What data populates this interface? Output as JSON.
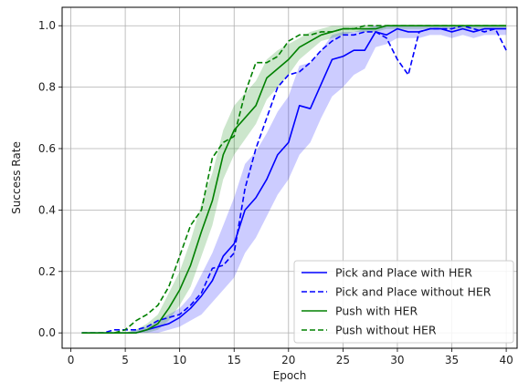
{
  "chart_data": {
    "type": "line",
    "title": "",
    "xlabel": "Epoch",
    "ylabel": "Success Rate",
    "xlim": [
      -0.8,
      41.0
    ],
    "ylim": [
      -0.05,
      1.06
    ],
    "xticks": [
      0,
      5,
      10,
      15,
      20,
      25,
      30,
      35,
      40
    ],
    "yticks": [
      0.0,
      0.2,
      0.4,
      0.6,
      0.8,
      1.0
    ],
    "xtick_labels": [
      "0",
      "5",
      "10",
      "15",
      "20",
      "25",
      "30",
      "35",
      "40"
    ],
    "ytick_labels": [
      "0.0",
      "0.2",
      "0.4",
      "0.6",
      "0.8",
      "1.0"
    ],
    "grid": true,
    "legend_position": "bottom-right",
    "x": [
      1,
      2,
      3,
      4,
      5,
      6,
      7,
      8,
      9,
      10,
      11,
      12,
      13,
      14,
      15,
      16,
      17,
      18,
      19,
      20,
      21,
      22,
      23,
      24,
      25,
      26,
      27,
      28,
      29,
      30,
      31,
      32,
      33,
      34,
      35,
      36,
      37,
      38,
      39,
      40
    ],
    "series": [
      {
        "name": "Pick and Place with HER",
        "color": "#0000ff",
        "linestyle": "solid",
        "values": [
          0.0,
          0.0,
          0.0,
          0.0,
          0.0,
          0.0,
          0.01,
          0.02,
          0.03,
          0.05,
          0.08,
          0.12,
          0.17,
          0.25,
          0.29,
          0.4,
          0.44,
          0.5,
          0.58,
          0.62,
          0.74,
          0.73,
          0.81,
          0.89,
          0.9,
          0.92,
          0.92,
          0.98,
          0.97,
          0.99,
          0.98,
          0.98,
          0.99,
          0.99,
          0.98,
          0.99,
          0.98,
          0.99,
          0.99,
          0.99
        ],
        "band_low": [
          0.0,
          0.0,
          0.0,
          0.0,
          0.0,
          0.0,
          0.0,
          0.0,
          0.01,
          0.02,
          0.04,
          0.06,
          0.1,
          0.14,
          0.18,
          0.26,
          0.31,
          0.38,
          0.45,
          0.5,
          0.58,
          0.62,
          0.7,
          0.77,
          0.8,
          0.84,
          0.86,
          0.93,
          0.94,
          0.96,
          0.96,
          0.96,
          0.97,
          0.97,
          0.96,
          0.97,
          0.96,
          0.97,
          0.97,
          0.97
        ],
        "band_high": [
          0.0,
          0.0,
          0.0,
          0.0,
          0.0,
          0.01,
          0.02,
          0.04,
          0.06,
          0.08,
          0.12,
          0.19,
          0.26,
          0.35,
          0.44,
          0.55,
          0.59,
          0.65,
          0.72,
          0.77,
          0.87,
          0.88,
          0.92,
          0.97,
          0.98,
          0.98,
          0.99,
          1.0,
          1.0,
          1.0,
          1.0,
          1.0,
          1.0,
          1.0,
          1.0,
          1.0,
          1.0,
          1.0,
          1.0,
          1.0
        ]
      },
      {
        "name": "Pick and Place without HER",
        "color": "#0000ff",
        "linestyle": "dashed",
        "values": [
          0.0,
          0.0,
          0.0,
          0.01,
          0.01,
          0.01,
          0.02,
          0.04,
          0.05,
          0.06,
          0.09,
          0.13,
          0.21,
          0.22,
          0.26,
          0.47,
          0.6,
          0.7,
          0.8,
          0.84,
          0.85,
          0.88,
          0.92,
          0.95,
          0.97,
          0.97,
          0.98,
          0.98,
          0.96,
          0.89,
          0.84,
          0.98,
          0.99,
          0.99,
          0.99,
          1.0,
          0.99,
          0.98,
          0.99,
          0.92
        ]
      },
      {
        "name": "Push with HER",
        "color": "#008000",
        "linestyle": "solid",
        "values": [
          0.0,
          0.0,
          0.0,
          0.0,
          0.0,
          0.0,
          0.01,
          0.03,
          0.08,
          0.14,
          0.22,
          0.33,
          0.43,
          0.58,
          0.66,
          0.7,
          0.74,
          0.83,
          0.86,
          0.89,
          0.93,
          0.95,
          0.97,
          0.98,
          0.99,
          0.99,
          0.99,
          0.99,
          1.0,
          1.0,
          1.0,
          1.0,
          1.0,
          1.0,
          1.0,
          1.0,
          1.0,
          1.0,
          1.0,
          1.0
        ],
        "band_low": [
          0.0,
          0.0,
          0.0,
          0.0,
          0.0,
          0.0,
          0.0,
          0.01,
          0.04,
          0.09,
          0.15,
          0.25,
          0.35,
          0.5,
          0.58,
          0.63,
          0.68,
          0.76,
          0.8,
          0.84,
          0.89,
          0.92,
          0.95,
          0.96,
          0.97,
          0.98,
          0.98,
          0.98,
          0.99,
          0.99,
          0.99,
          0.99,
          0.99,
          0.99,
          0.99,
          0.99,
          0.99,
          0.99,
          0.99,
          0.99
        ],
        "band_high": [
          0.0,
          0.0,
          0.0,
          0.0,
          0.0,
          0.01,
          0.03,
          0.06,
          0.13,
          0.2,
          0.3,
          0.42,
          0.52,
          0.66,
          0.74,
          0.78,
          0.82,
          0.89,
          0.92,
          0.94,
          0.96,
          0.98,
          0.99,
          1.0,
          1.0,
          1.0,
          1.0,
          1.0,
          1.0,
          1.0,
          1.0,
          1.0,
          1.0,
          1.0,
          1.0,
          1.0,
          1.0,
          1.0,
          1.0,
          1.0
        ]
      },
      {
        "name": "Push without HER",
        "color": "#008000",
        "linestyle": "dashed",
        "values": [
          0.0,
          0.0,
          0.0,
          0.0,
          0.01,
          0.04,
          0.06,
          0.09,
          0.15,
          0.25,
          0.35,
          0.4,
          0.57,
          0.62,
          0.64,
          0.78,
          0.88,
          0.88,
          0.9,
          0.95,
          0.97,
          0.97,
          0.98,
          0.98,
          0.99,
          0.99,
          1.0,
          1.0,
          1.0,
          1.0,
          1.0,
          1.0,
          1.0,
          1.0,
          1.0,
          1.0,
          1.0,
          1.0,
          1.0,
          1.0
        ]
      }
    ]
  }
}
